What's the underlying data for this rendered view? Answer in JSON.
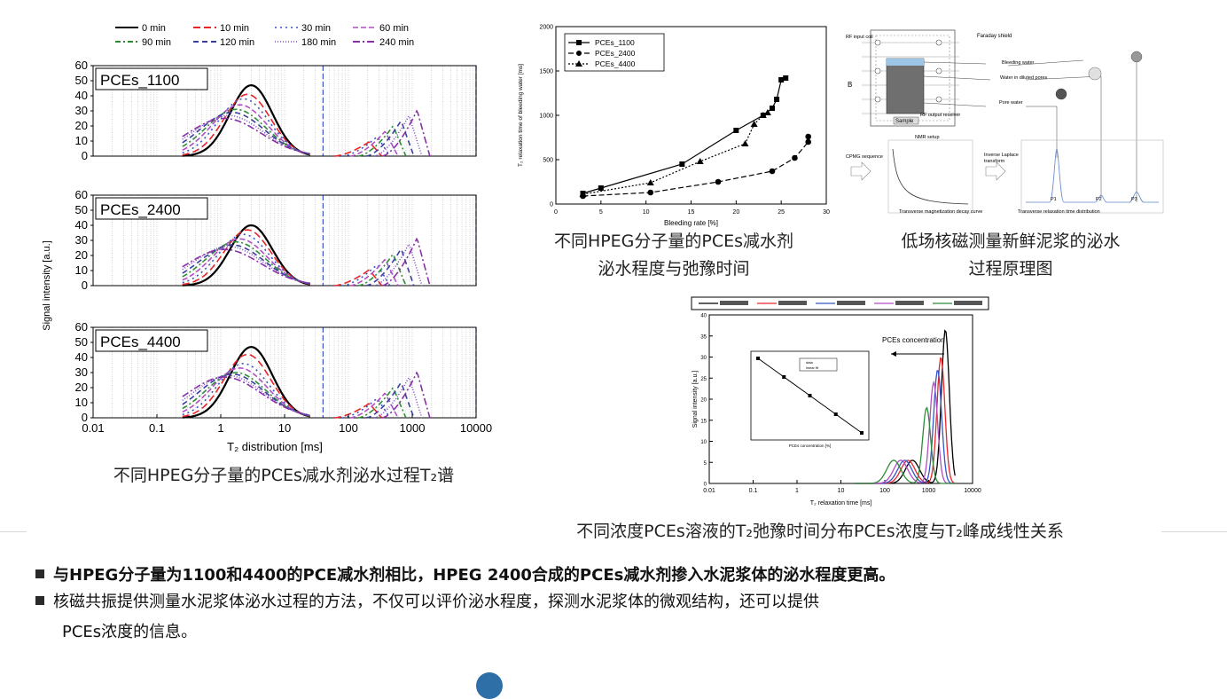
{
  "captions": {
    "t2_spectra": "不同HPEG分子量的PCEs减水剂泌水过程T₂谱",
    "bleeding_line1": "不同HPEG分子量的PCEs减水剂",
    "bleeding_line2": "泌水程度与弛豫时间",
    "nmr_line1": "低场核磁测量新鲜泥浆的泌水",
    "nmr_line2": "过程原理图",
    "concentration": "不同浓度PCEs溶液的T₂弛豫时间分布PCEs浓度与T₂峰成线性关系"
  },
  "bullets": [
    {
      "text": "与HPEG分子量为1100和4400的PCE减水剂相比，HPEG 2400合成的PCEs减水剂掺入水泥浆体的泌水程度更高。",
      "bold": true
    },
    {
      "text_line1": "核磁共振提供测量水泥浆体泌水过程的方法，不仅可以评价泌水程度，探测水泥浆体的微观结构，还可以提供",
      "text_line2": "PCEs浓度的信息。",
      "bold": false
    }
  ],
  "chart_data": [
    {
      "type": "line",
      "name_panels": [
        "PCEs_1100",
        "PCEs_2400",
        "PCEs_4400"
      ],
      "xlabel": "T₂ distribution [ms]",
      "ylabel": "Signal intensity [a.u.]",
      "x_scale": "log",
      "xlim": [
        0.01,
        10000
      ],
      "ylim": [
        0,
        60
      ],
      "x_ticks": [
        "0.01",
        "0.1",
        "1",
        "10",
        "100",
        "1000",
        "10000"
      ],
      "y_ticks": [
        "0",
        "10",
        "20",
        "30",
        "40",
        "50",
        "60"
      ],
      "legend": [
        "0 min",
        "10 min",
        "30 min",
        "60 min",
        "90 min",
        "120 min",
        "180 min",
        "240 min"
      ],
      "colors": [
        "#000000",
        "#e8262a",
        "#3654c8",
        "#b04fc4",
        "#2f8a3a",
        "#3a3f9e",
        "#7c4fc0",
        "#8a2fa8"
      ],
      "series_peaks_panel1": [
        47,
        41,
        38,
        34,
        31,
        29,
        27,
        25
      ],
      "series_peaks_panel2": [
        40,
        37,
        34,
        31,
        29,
        27,
        26,
        24
      ],
      "series_peaks_panel3": [
        47,
        42,
        36,
        33,
        30,
        29,
        28,
        27
      ],
      "second_peak": {
        "x_range_ms": [
          100,
          2000
        ],
        "max": 33
      }
    },
    {
      "type": "line",
      "xlabel": "Bleeding rate [%]",
      "ylabel": "T₂ relaxation time of bleeding water [ms]",
      "xlim": [
        0,
        30
      ],
      "ylim": [
        0,
        2000
      ],
      "x_ticks": [
        "0",
        "5",
        "10",
        "15",
        "20",
        "25",
        "30"
      ],
      "y_ticks": [
        "0",
        "500",
        "1000",
        "1500",
        "2000"
      ],
      "legend_position": "top-left",
      "series": [
        {
          "name": "PCEs_1100",
          "marker": "square",
          "x": [
            3,
            5,
            14,
            20,
            23,
            24,
            24.5,
            25,
            25.5
          ],
          "y": [
            120,
            180,
            450,
            830,
            1000,
            1080,
            1180,
            1400,
            1420
          ]
        },
        {
          "name": "PCEs_2400",
          "marker": "circle",
          "x": [
            3,
            10.5,
            18,
            24,
            26.5,
            28,
            28
          ],
          "y": [
            90,
            130,
            250,
            370,
            520,
            700,
            760
          ]
        },
        {
          "name": "PCEs_4400",
          "marker": "triangle",
          "x": [
            3,
            10.5,
            16,
            21,
            22,
            23,
            23.5
          ],
          "y": [
            110,
            240,
            480,
            680,
            900,
            1000,
            1030
          ]
        }
      ]
    },
    {
      "type": "line",
      "xlabel": "T₂ relaxation time [ms]",
      "ylabel": "Signal intensity [a.u.]",
      "x_scale": "log",
      "xlim": [
        0.01,
        10000
      ],
      "ylim": [
        0,
        40
      ],
      "x_ticks": [
        "0.01",
        "0.1",
        "1",
        "10",
        "100",
        "1000",
        "10000"
      ],
      "y_ticks": [
        "0",
        "5",
        "10",
        "15",
        "20",
        "25",
        "30",
        "35",
        "40"
      ],
      "annotation": "PCEs concentration",
      "series_peaks": [
        {
          "x_ms": 2400,
          "y": 36.5,
          "color": "#000000"
        },
        {
          "x_ms": 1900,
          "y": 30,
          "color": "#e8262a"
        },
        {
          "x_ms": 1600,
          "y": 27,
          "color": "#3654c8"
        },
        {
          "x_ms": 1300,
          "y": 24,
          "color": "#b04fc4"
        },
        {
          "x_ms": 900,
          "y": 18,
          "color": "#2f8a3a"
        }
      ],
      "inset": {
        "type": "line",
        "xlabel": "PCEs concentration [%]",
        "x": [
          0,
          2,
          4,
          6,
          8
        ],
        "y": [
          10,
          9,
          8,
          7,
          6
        ],
        "legend": [
          "data",
          "linear fit"
        ]
      }
    }
  ],
  "diagram": {
    "labels": [
      "RF input coil",
      "Faraday shield",
      "Bleeding water",
      "Water in diluted pores",
      "Pore water",
      "Sample",
      "RF output receiver",
      "NMR setup",
      "CPMG sequence",
      "Inverse Laplace transform",
      "Transverse magnetization decay curve",
      "Transverse relaxation time distribution",
      "B",
      "P1",
      "P2",
      "P3"
    ]
  }
}
